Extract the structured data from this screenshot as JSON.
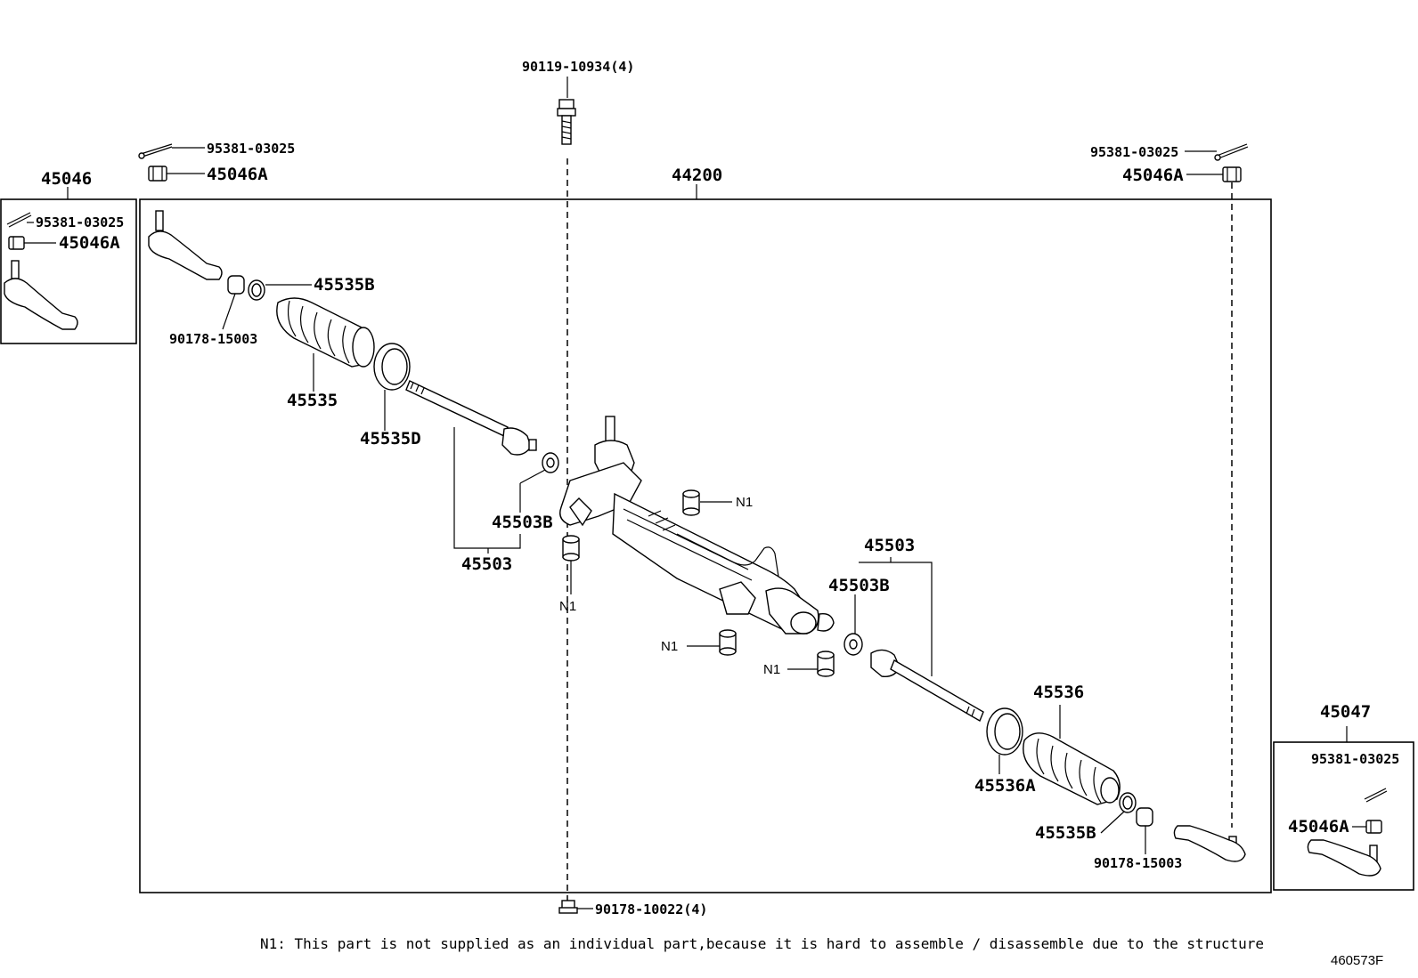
{
  "diagram": {
    "labels": {
      "bolt_top": "90119-10934(4)",
      "cotter_top_left": "95381-03025",
      "nut_top_left": "45046A",
      "assembly_main": "44200",
      "cotter_top_right": "95381-03025",
      "nut_top_right": "45046A",
      "kit_left": "45046",
      "kit_left_cotter": "95381-03025",
      "kit_left_nut": "45046A",
      "clamp_left": "45535B",
      "nut_left": "90178-15003",
      "boot_left": "45535",
      "band_left": "45535D",
      "washer_left": "45503B",
      "rod_left": "45503",
      "n1_top": "N1",
      "n1_left": "N1",
      "n1_mid": "N1",
      "n1_mid2": "N1",
      "rod_right": "45503",
      "washer_right": "45503B",
      "boot_right": "45536",
      "band_right": "45536A",
      "clamp_right": "45535B",
      "nut_right": "90178-15003",
      "kit_right": "45047",
      "kit_right_cotter": "95381-03025",
      "kit_right_nut": "45046A",
      "nut_bottom": "90178-10022(4)"
    },
    "footnote": "N1: This part is not supplied as an individual part,because it is hard to assemble / disassemble due to the structure",
    "figure_code": "460573F"
  }
}
